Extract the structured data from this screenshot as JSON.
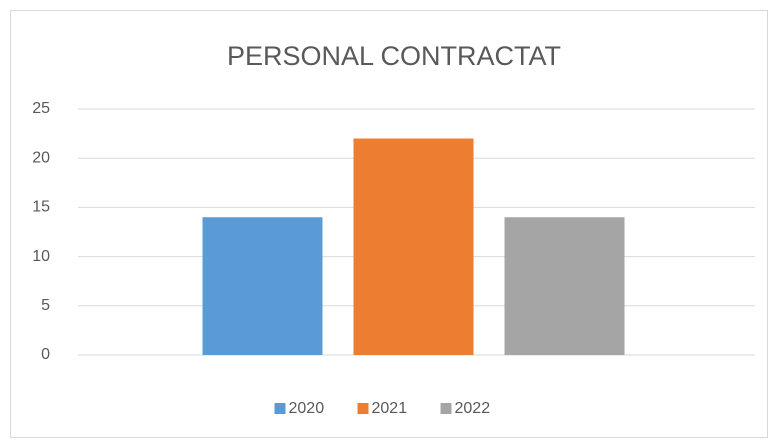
{
  "chart_data": {
    "type": "bar",
    "title": "PERSONAL CONTRACTAT",
    "categories": [
      null
    ],
    "series": [
      {
        "name": "2020",
        "color": "#5b9bd5",
        "values": [
          14
        ]
      },
      {
        "name": "2021",
        "color": "#ed7d31",
        "values": [
          22
        ]
      },
      {
        "name": "2022",
        "color": "#a5a5a5",
        "values": [
          14
        ]
      }
    ],
    "ylim": [
      0,
      25
    ],
    "yticks": [
      0,
      5,
      10,
      15,
      20,
      25
    ],
    "grid": true,
    "legend": "bottom"
  }
}
